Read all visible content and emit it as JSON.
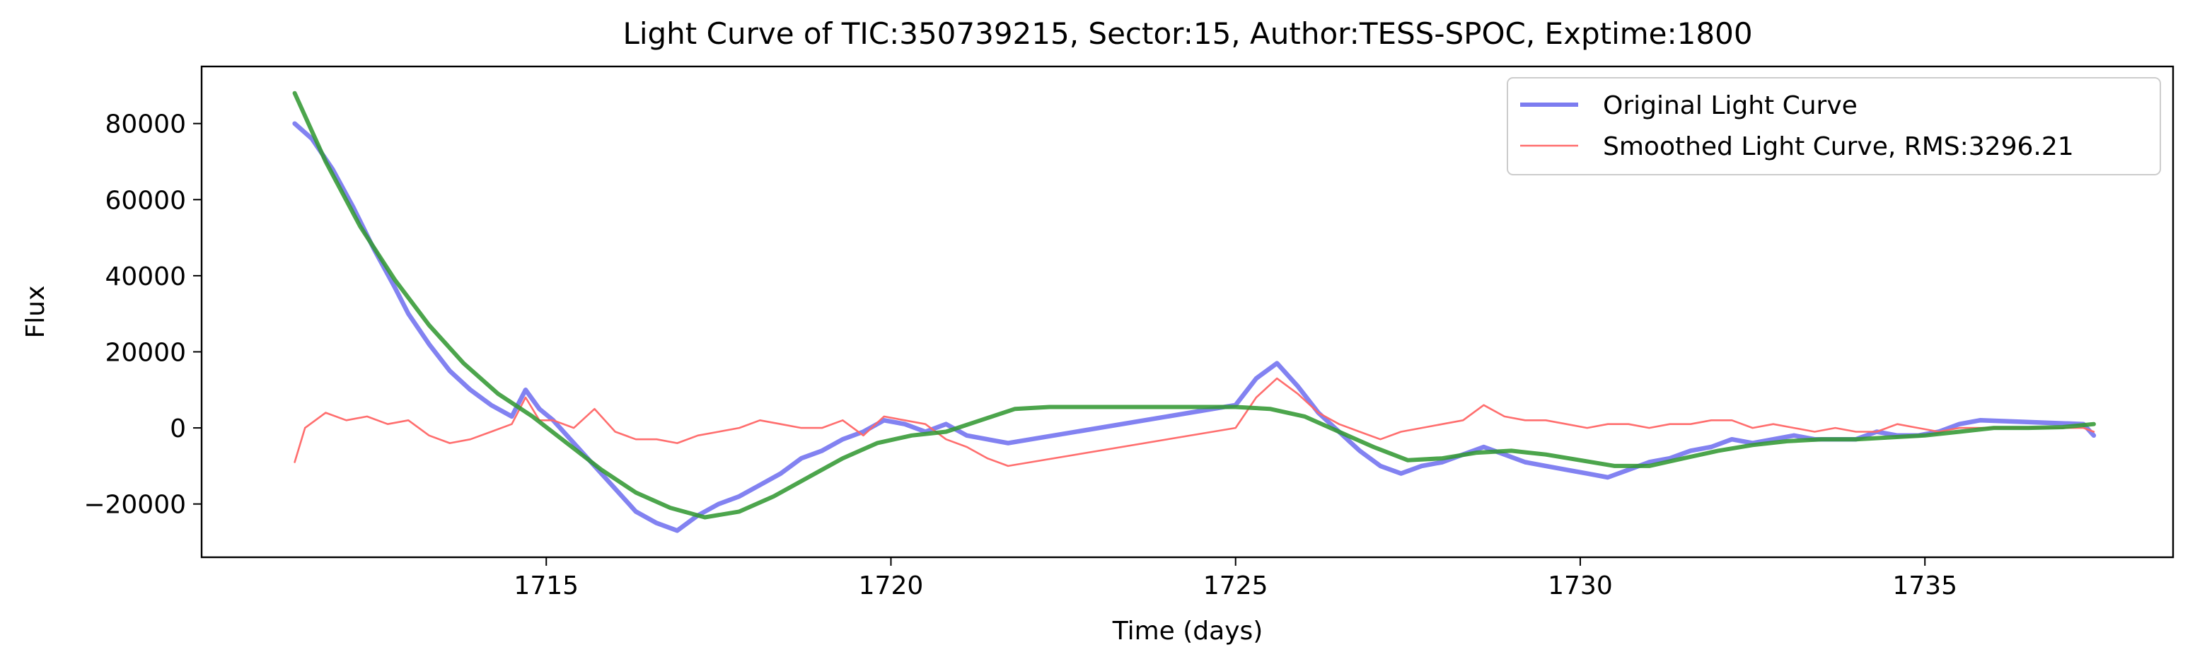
{
  "chart_data": {
    "type": "line",
    "title": "Light Curve of TIC:350739215, Sector:15, Author:TESS-SPOC, Exptime:1800",
    "xlabel": "Time (days)",
    "ylabel": "Flux",
    "xlim": [
      1710.0,
      1738.6
    ],
    "ylim": [
      -34000,
      95000
    ],
    "xticks": [
      1715,
      1720,
      1725,
      1730,
      1735
    ],
    "yticks": [
      -20000,
      0,
      20000,
      40000,
      60000,
      80000
    ],
    "grid": false,
    "legend_position": "top-right",
    "series": [
      {
        "name": "Original Light Curve",
        "color": "#6666ee",
        "x": [
          1711.35,
          1711.6,
          1711.9,
          1712.2,
          1712.5,
          1712.8,
          1713.0,
          1713.3,
          1713.6,
          1713.9,
          1714.2,
          1714.5,
          1714.7,
          1714.9,
          1715.1,
          1715.4,
          1715.7,
          1716.0,
          1716.3,
          1716.6,
          1716.9,
          1717.2,
          1717.5,
          1717.8,
          1718.1,
          1718.4,
          1718.7,
          1719.0,
          1719.3,
          1719.6,
          1719.9,
          1720.2,
          1720.5,
          1720.8,
          1721.1,
          1721.4,
          1721.7,
          1725.0,
          1725.3,
          1725.6,
          1725.9,
          1726.2,
          1726.5,
          1726.8,
          1727.1,
          1727.4,
          1727.7,
          1728.0,
          1728.3,
          1728.6,
          1728.9,
          1729.2,
          1729.5,
          1729.8,
          1730.1,
          1730.4,
          1730.7,
          1731.0,
          1731.3,
          1731.6,
          1731.9,
          1732.2,
          1732.5,
          1732.8,
          1733.1,
          1733.4,
          1733.7,
          1734.0,
          1734.3,
          1734.6,
          1734.9,
          1735.2,
          1735.5,
          1735.8,
          1737.3,
          1737.45
        ],
        "y": [
          80000,
          76000,
          68000,
          58000,
          47000,
          37000,
          30000,
          22000,
          15000,
          10000,
          6000,
          3000,
          10000,
          5000,
          2000,
          -4000,
          -10000,
          -16000,
          -22000,
          -25000,
          -27000,
          -23000,
          -20000,
          -18000,
          -15000,
          -12000,
          -8000,
          -6000,
          -3000,
          -1000,
          2000,
          1000,
          -1000,
          1000,
          -2000,
          -3000,
          -4000,
          6000,
          13000,
          17000,
          11000,
          4000,
          -1000,
          -6000,
          -10000,
          -12000,
          -10000,
          -9000,
          -7000,
          -5000,
          -7000,
          -9000,
          -10000,
          -11000,
          -12000,
          -13000,
          -11000,
          -9000,
          -8000,
          -6000,
          -5000,
          -3000,
          -4000,
          -3000,
          -2000,
          -3000,
          -3000,
          -3000,
          -1000,
          -2000,
          -2000,
          -1000,
          1000,
          2000,
          1000,
          -2000
        ]
      },
      {
        "name": "Smoothed Light Curve, RMS:3296.21",
        "color": "#ff6666",
        "x": [
          1711.35,
          1711.5,
          1711.8,
          1712.1,
          1712.4,
          1712.7,
          1713.0,
          1713.3,
          1713.6,
          1713.9,
          1714.2,
          1714.5,
          1714.7,
          1714.9,
          1715.1,
          1715.4,
          1715.7,
          1716.0,
          1716.3,
          1716.6,
          1716.9,
          1717.2,
          1717.5,
          1717.8,
          1718.1,
          1718.4,
          1718.7,
          1719.0,
          1719.3,
          1719.6,
          1719.9,
          1720.2,
          1720.5,
          1720.8,
          1721.1,
          1721.4,
          1721.7,
          1725.0,
          1725.3,
          1725.6,
          1725.9,
          1726.2,
          1726.5,
          1726.8,
          1727.1,
          1727.4,
          1727.7,
          1728.0,
          1728.3,
          1728.6,
          1728.9,
          1729.2,
          1729.5,
          1729.8,
          1730.1,
          1730.4,
          1730.7,
          1731.0,
          1731.3,
          1731.6,
          1731.9,
          1732.2,
          1732.5,
          1732.8,
          1733.1,
          1733.4,
          1733.7,
          1734.0,
          1734.3,
          1734.6,
          1734.9,
          1735.2,
          1735.5,
          1735.8,
          1737.3,
          1737.45
        ],
        "y": [
          -9000,
          0,
          4000,
          2000,
          3000,
          1000,
          2000,
          -2000,
          -4000,
          -3000,
          -1000,
          1000,
          8000,
          2000,
          2000,
          0,
          5000,
          -1000,
          -3000,
          -3000,
          -4000,
          -2000,
          -1000,
          0,
          2000,
          1000,
          0,
          0,
          2000,
          -2000,
          3000,
          2000,
          1000,
          -3000,
          -5000,
          -8000,
          -10000,
          0,
          8000,
          13000,
          9000,
          4000,
          1000,
          -1000,
          -3000,
          -1000,
          0,
          1000,
          2000,
          6000,
          3000,
          2000,
          2000,
          1000,
          0,
          1000,
          1000,
          0,
          1000,
          1000,
          2000,
          2000,
          0,
          1000,
          0,
          -1000,
          0,
          -1000,
          -1000,
          1000,
          0,
          -1000,
          0,
          0,
          0,
          -1000
        ]
      },
      {
        "name": "",
        "color": "#339933",
        "x": [
          1711.35,
          1711.8,
          1712.3,
          1712.8,
          1713.3,
          1713.8,
          1714.3,
          1714.8,
          1715.3,
          1715.8,
          1716.3,
          1716.8,
          1717.3,
          1717.8,
          1718.3,
          1718.8,
          1719.3,
          1719.8,
          1720.3,
          1720.8,
          1721.3,
          1721.8,
          1722.3,
          1723.0,
          1724.0,
          1725.0,
          1725.5,
          1726.0,
          1726.5,
          1727.0,
          1727.5,
          1728.0,
          1728.5,
          1729.0,
          1729.5,
          1730.0,
          1730.5,
          1731.0,
          1731.5,
          1732.0,
          1732.5,
          1733.0,
          1733.5,
          1734.0,
          1734.5,
          1735.0,
          1735.5,
          1736.0,
          1736.5,
          1737.0,
          1737.45
        ],
        "y": [
          88000,
          70000,
          53000,
          39000,
          27000,
          17000,
          9000,
          3000,
          -4000,
          -11000,
          -17000,
          -21000,
          -23500,
          -22000,
          -18000,
          -13000,
          -8000,
          -4000,
          -2000,
          -1000,
          2000,
          5000,
          5500,
          5500,
          5500,
          5500,
          5000,
          3000,
          -1000,
          -5000,
          -8500,
          -8000,
          -6500,
          -6000,
          -7000,
          -8500,
          -10000,
          -10000,
          -8000,
          -6000,
          -4500,
          -3500,
          -3000,
          -3000,
          -2500,
          -2000,
          -1000,
          0,
          0,
          200,
          1000
        ]
      }
    ]
  }
}
